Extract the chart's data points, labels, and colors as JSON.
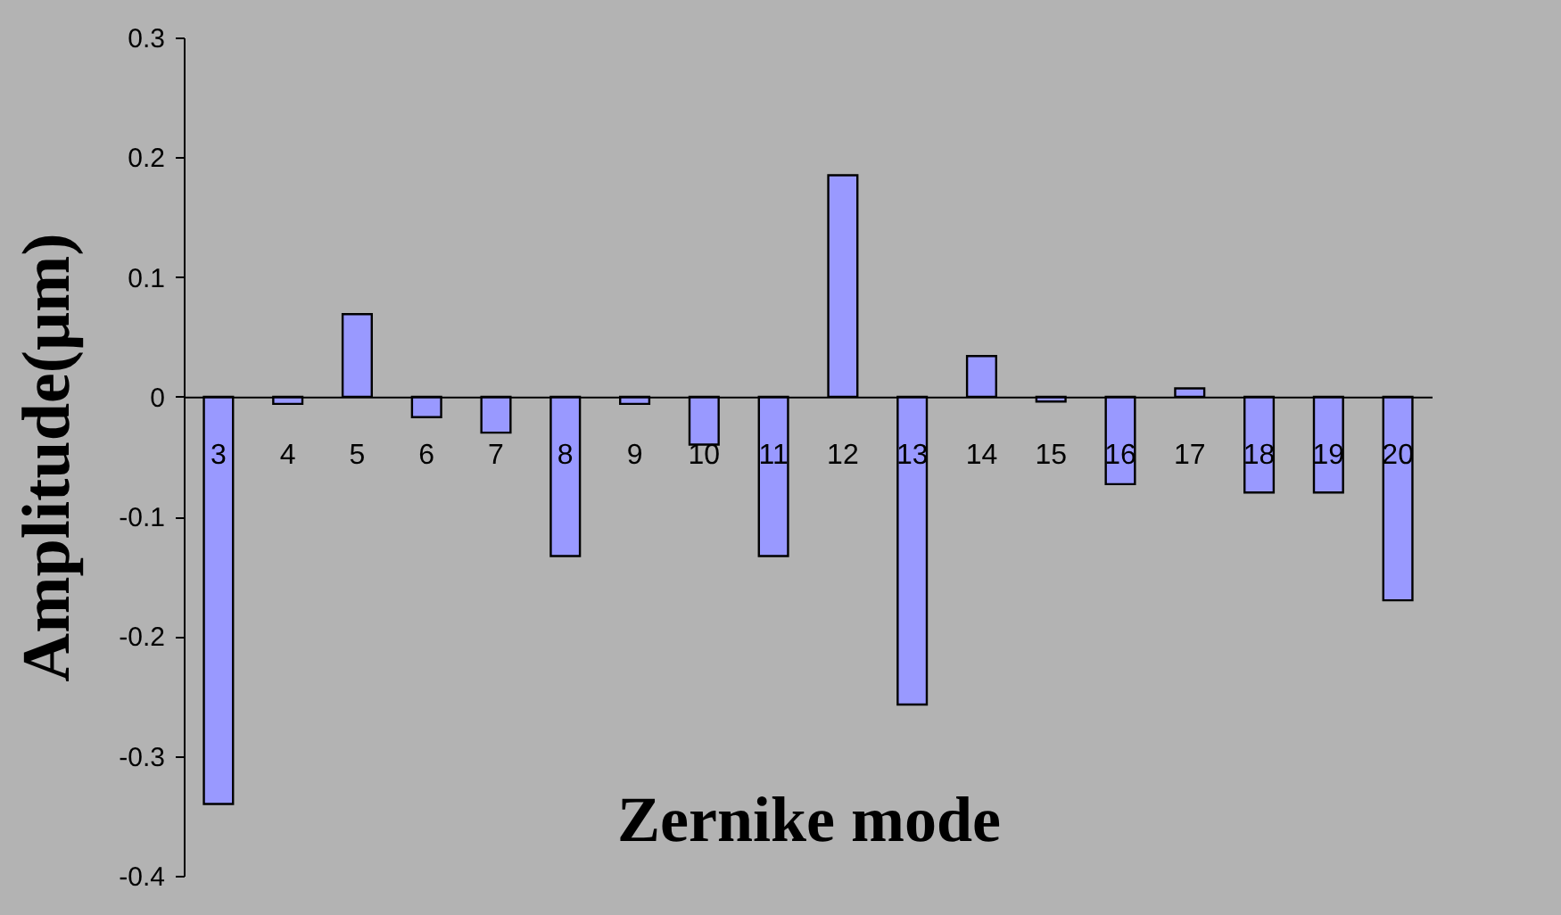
{
  "chart_data": {
    "type": "bar",
    "xlabel": "Zernike mode",
    "ylabel": "Amplitude(μm)",
    "categories": [
      "3",
      "4",
      "5",
      "6",
      "7",
      "8",
      "9",
      "10",
      "11",
      "12",
      "13",
      "14",
      "15",
      "16",
      "17",
      "18",
      "19",
      "20"
    ],
    "series": [
      {
        "color": "#9999ff",
        "values": [
          -0.34,
          -0.006,
          0.069,
          -0.017,
          -0.03,
          -0.133,
          -0.006,
          -0.04,
          -0.133,
          0.185,
          -0.257,
          0.034,
          -0.004,
          -0.073,
          0.007,
          -0.08,
          -0.08,
          -0.17
        ]
      }
    ],
    "ylim": [
      -0.4,
      0.3
    ],
    "yticks": [
      -0.4,
      -0.3,
      -0.2,
      -0.1,
      0,
      0.1,
      0.2,
      0.3
    ]
  }
}
